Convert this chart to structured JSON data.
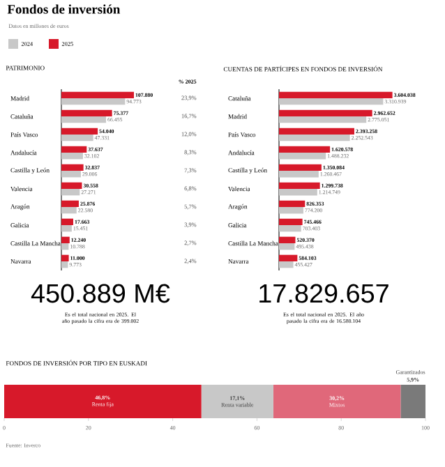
{
  "chart_data": [
    {
      "type": "bar",
      "orientation": "horizontal",
      "title": "Fondos de inversión",
      "subtitle": "Datos en millones de euros",
      "legend": "top left",
      "categories": [
        "Madrid",
        "Cataluña",
        "País Vasco",
        "Andalucía",
        "Castilla y León",
        "Valencia",
        "Aragón",
        "Galicia",
        "Castilla La Mancha",
        "Navarra"
      ],
      "series": [
        {
          "name": "2024",
          "color": "#c8c8c8",
          "values": [
            94773,
            66455,
            47331,
            32102,
            29006,
            27271,
            22580,
            15451,
            10788,
            9773
          ],
          "value_labels": [
            "94.773",
            "66.455",
            "47.331",
            "32.102",
            "29.006",
            "27.271",
            "22.580",
            "15.451",
            "10.788",
            "9.773"
          ]
        },
        {
          "name": "2025",
          "color": "#d7192a",
          "values": [
            107880,
            75377,
            54040,
            37637,
            32837,
            30558,
            25876,
            17663,
            12240,
            11000
          ],
          "value_labels": [
            "107.880",
            "75.377",
            "54.040",
            "37.637",
            "32.837",
            "30.558",
            "25.876",
            "17.663",
            "12.240",
            "11.000"
          ]
        }
      ],
      "annotations": [
        "PATRIMONIO",
        "% 2025",
        "23,9%",
        "16,7%",
        "12,0%",
        "8,3%",
        "7,3%",
        "6,8%",
        "5,7%",
        "3,9%",
        "2,7%",
        "2,4%",
        "450.889 M€",
        "Es el total nacional en 2025. El año pasado la cifra era de 399.002"
      ]
    },
    {
      "type": "bar",
      "orientation": "horizontal",
      "title": "CUENTAS DE PARTÍCIPES EN FONDOS DE INVERSIÓN",
      "categories": [
        "Cataluña",
        "Madrid",
        "País Vasco",
        "Andalucía",
        "Castilla y León",
        "Valencia",
        "Aragón",
        "Galicia",
        "Castilla La Mancha",
        "Navarra"
      ],
      "series": [
        {
          "color": "#c8c8c8",
          "values": [
            3310939,
            2775051,
            2252543,
            1488232,
            1260467,
            1214749,
            774200,
            703403,
            495438,
            455427
          ],
          "value_labels": [
            "3.310.939",
            "2.775.051",
            "2.252.543",
            "1.488.232",
            "1.260.467",
            "1.214.749",
            "774.200",
            "703.403",
            "495.438",
            "455.427"
          ]
        },
        {
          "color": "#d7192a",
          "values": [
            3604038,
            2962652,
            2393258,
            1620578,
            1350084,
            1299738,
            826353,
            745466,
            520370,
            584103
          ],
          "value_labels": [
            "3.604.038",
            "2.962.652",
            "2.393.258",
            "1.620.578",
            "1.350.084",
            "1.299.738",
            "826.353",
            "745.466",
            "520.370",
            "584.103"
          ]
        }
      ],
      "annotations": [
        "17.829.657",
        "Es el total nacional en 2025. El año pasado la cifra era de 16.580.104"
      ]
    },
    {
      "type": "bar",
      "orientation": "horizontal",
      "stacked": true,
      "title": "FONDOS DE INVERSIÓN POR TIPO EN EUSKADI",
      "categories": [
        null
      ],
      "xlim": [
        0,
        100
      ],
      "xticks": [
        0,
        20,
        40,
        60,
        80,
        100
      ],
      "series": [
        {
          "name": "Renta fija",
          "color": "#d7192a",
          "values": [
            46.8
          ],
          "value_labels": [
            "46,8%"
          ]
        },
        {
          "name": "Renta variable",
          "color": "#c8c8c8",
          "values": [
            17.1
          ],
          "value_labels": [
            "17,1%"
          ]
        },
        {
          "name": "Mixtos",
          "color": "#e0687a",
          "values": [
            30.2
          ],
          "value_labels": [
            "30,2%"
          ]
        },
        {
          "name": "Garantizados",
          "color": "#7a7a7a",
          "values": [
            5.9
          ],
          "value_labels": [
            "5,9%"
          ]
        }
      ],
      "annotations": [
        "Fuente: Inverco"
      ]
    }
  ]
}
